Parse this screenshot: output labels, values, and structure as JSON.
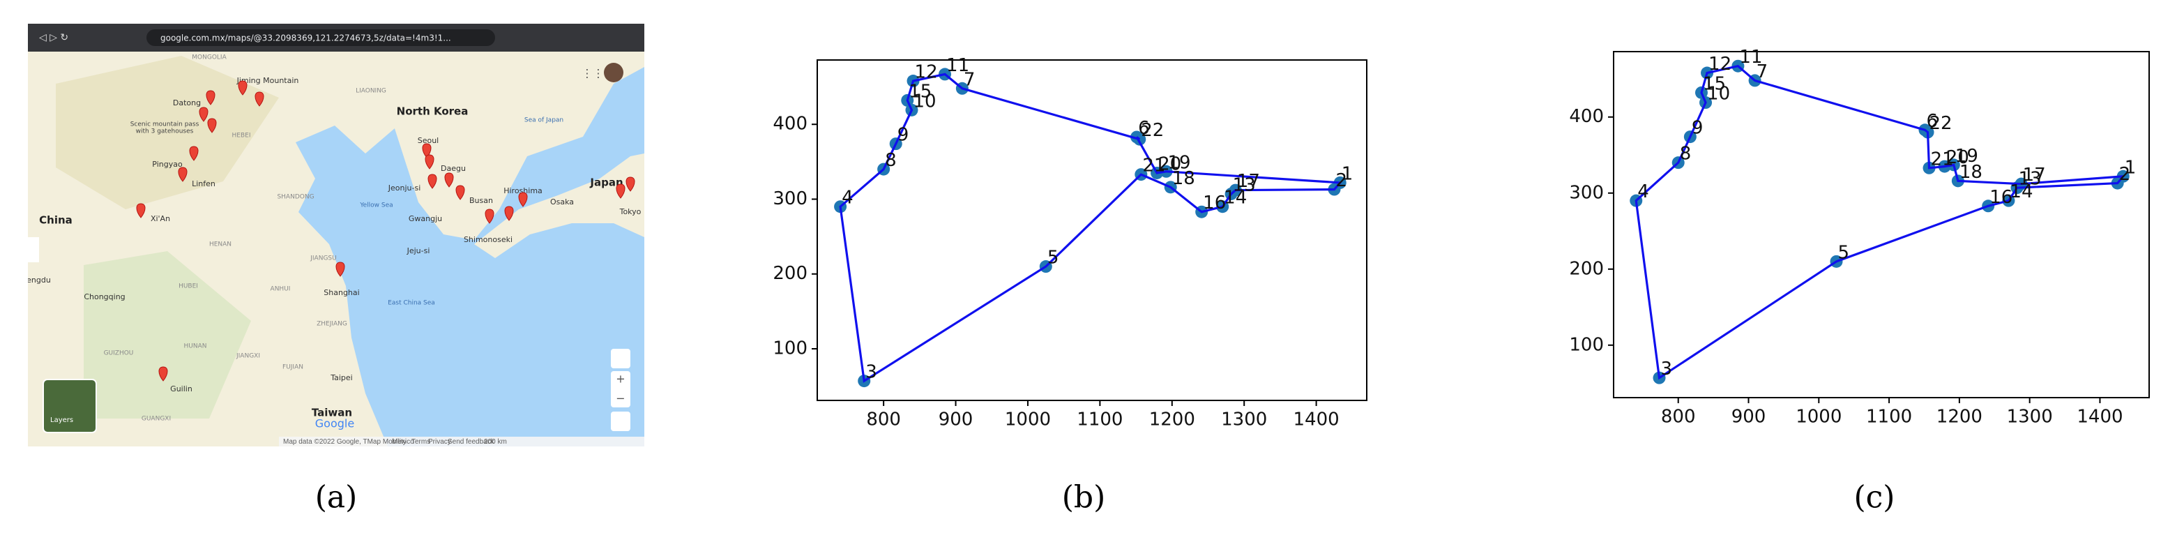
{
  "map": {
    "url": "google.com.mx/maps/@33.2098369,121.2274673,5z/data=!4m3!1...",
    "labels": [
      "MONGOLIA",
      "Jiming Mountain",
      "Datong",
      "Scenic mountain pass",
      "with 3 gatehouses",
      "HEBEI",
      "LIAONING",
      "North Korea",
      "Sea of Japan",
      "Seoul",
      "Pingyao",
      "Linfen",
      "Daegu",
      "Jeonju-si",
      "Busan",
      "Hiroshima",
      "Japan",
      "China",
      "Xi'An",
      "SHANDONG",
      "Yellow Sea",
      "Gwangju",
      "Osaka",
      "Tokyo",
      "Shimonoseki",
      "HENAN",
      "Jeju-si",
      "JIANGSU",
      "hengdu",
      "Chongqing",
      "HUBEI",
      "ANHUI",
      "Shanghai",
      "East China Sea",
      "ZHEJIANG",
      "GUIZHOU",
      "HUNAN",
      "JIANGXI",
      "Guilin",
      "FUJIAN",
      "Taipei",
      "Taiwan",
      "GUANGXI"
    ],
    "layers": "Layers",
    "logo": "Google",
    "footer": [
      "Map data ©2022 Google, TMap Mobility",
      "Mexico",
      "Terms",
      "Privacy",
      "Send feedback",
      "200 km"
    ]
  },
  "chart_data": [
    {
      "type": "line",
      "closed": true,
      "line_color": "#1010ee",
      "marker_color": "#1f77b4",
      "x": [
        773,
        740,
        800,
        817,
        839,
        833,
        841,
        885,
        909,
        1155,
        1151,
        1179,
        1192,
        1433,
        1425,
        1288,
        1282,
        1270,
        1241,
        1198,
        1157,
        1025
      ],
      "y": [
        57,
        290,
        340,
        374,
        419,
        432,
        458,
        467,
        448,
        380,
        383,
        335,
        337,
        322,
        313,
        312,
        307,
        290,
        283,
        316,
        333,
        210
      ],
      "point_labels": [
        "3",
        "4",
        "8",
        "9",
        "10",
        "15",
        "12",
        "11",
        "7",
        "22",
        "6",
        "20",
        "19",
        "1",
        "2",
        "17",
        "13",
        "14",
        "16",
        "18",
        "21",
        "5"
      ],
      "xlim": [
        708,
        1470
      ],
      "ylim": [
        31,
        486
      ],
      "xticks": [
        800,
        900,
        1000,
        1100,
        1200,
        1300,
        1400
      ],
      "yticks": [
        100,
        200,
        300,
        400
      ]
    },
    {
      "type": "line",
      "closed": true,
      "line_color": "#1010ee",
      "marker_color": "#1f77b4",
      "x": [
        773,
        740,
        800,
        817,
        839,
        833,
        841,
        885,
        909,
        1151,
        1155,
        1157,
        1179,
        1192,
        1198,
        1288,
        1433,
        1425,
        1282,
        1270,
        1241,
        1025
      ],
      "y": [
        57,
        290,
        340,
        374,
        419,
        432,
        458,
        467,
        448,
        383,
        380,
        333,
        335,
        337,
        316,
        312,
        322,
        313,
        307,
        290,
        283,
        210
      ],
      "point_labels": [
        "3",
        "4",
        "8",
        "9",
        "10",
        "15",
        "12",
        "11",
        "7",
        "6",
        "22",
        "21",
        "20",
        "19",
        "18",
        "17",
        "1",
        "2",
        "13",
        "14",
        "16",
        "5"
      ],
      "xlim": [
        708,
        1470
      ],
      "ylim": [
        31,
        486
      ],
      "xticks": [
        800,
        900,
        1000,
        1100,
        1200,
        1300,
        1400
      ],
      "yticks": [
        100,
        200,
        300,
        400
      ]
    }
  ],
  "captions": [
    "(a)",
    "(b)",
    "(c)"
  ]
}
